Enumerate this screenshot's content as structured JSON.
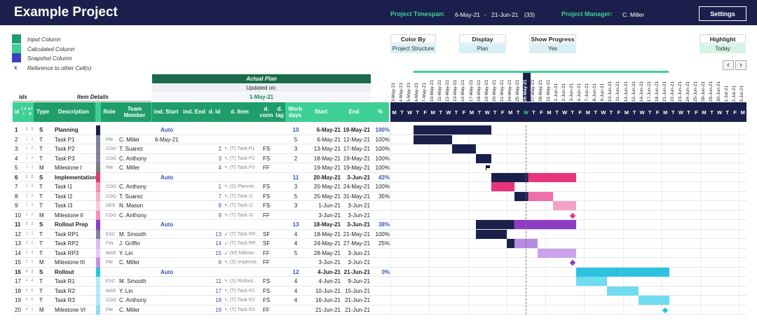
{
  "header": {
    "title": "Example Project",
    "timespan_label": "Project Timespan:",
    "start": "6-May-21",
    "dash": "-",
    "end": "21-Jun-21",
    "days": "(33)",
    "manager_label": "Project Manager:",
    "manager": "C. Miller",
    "settings_label": "Settings"
  },
  "legend": [
    {
      "label": "Input Column",
      "color": "#1f9e6b"
    },
    {
      "label": "Calculated Column",
      "color": "#3ecf96"
    },
    {
      "label": "Snapshot Column",
      "color": "#3a3fc4"
    },
    {
      "label": "Reference to other Cell(s)",
      "mark": "x"
    }
  ],
  "controls": [
    {
      "label": "Color By",
      "value": "Project Structure"
    },
    {
      "label": "Display",
      "value": "Plan"
    },
    {
      "label": "Show Progress",
      "value": "Yes"
    },
    {
      "label": "Highlight",
      "value": "Today"
    }
  ],
  "nav": {
    "prev": "‹",
    "next": "›"
  },
  "plan_header": {
    "actual_plan": "Actual Plan",
    "updated_on": "Updated on:",
    "updated_date": "1-May-21",
    "ids": "ids",
    "item_details": "Item Details"
  },
  "columns": {
    "id": "id",
    "lvl": "l v l",
    "sid": "s i d",
    "type": "Type",
    "description": "Description",
    "role": "Role",
    "team_member": "Team Member",
    "ind_start": "ind. Start",
    "ind_end": "ind. End",
    "d_id": "d. id",
    "d_item": "d. Item",
    "d_conn": "d. conn",
    "d_lag": "d. lag",
    "work_days": "Work days",
    "start": "Start",
    "end": "End",
    "pct": "%"
  },
  "gantt_dates": [
    "3-May-21",
    "4-May-21",
    "5-May-21",
    "6-May-21",
    "7-May-21",
    "10-May-21",
    "11-May-21",
    "12-May-21",
    "13-May-21",
    "14-May-21",
    "17-May-21",
    "18-May-21",
    "19-May-21",
    "20-May-21",
    "21-May-21",
    "24-May-21",
    "25-May-21",
    "26-May-21",
    "27-May-21",
    "28-May-21",
    "31-May-21",
    "1-Jun-21",
    "2-Jun-21",
    "3-Jun-21",
    "4-Jun-21",
    "7-Jun-21",
    "8-Jun-21",
    "9-Jun-21",
    "10-Jun-21",
    "11-Jun-21",
    "14-Jun-21",
    "15-Jun-21",
    "16-Jun-21",
    "17-Jun-21",
    "18-Jun-21",
    "21-Jun-21",
    "22-Jun-21",
    "23-Jun-21",
    "24-Jun-21",
    "25-Jun-21",
    "28-Jun-21",
    "29-Jun-21",
    "30-Jun-21",
    "1-Jul-21",
    "2-Jul-21",
    "5-Jul-21"
  ],
  "gantt_days": [
    "M",
    "T",
    "W",
    "T",
    "F",
    "M",
    "T",
    "W",
    "T",
    "F",
    "M",
    "T",
    "W",
    "T",
    "F",
    "M",
    "T",
    "W",
    "T",
    "F",
    "M",
    "T",
    "W",
    "T",
    "F",
    "M",
    "T",
    "W",
    "T",
    "F",
    "M",
    "T",
    "W",
    "T",
    "F",
    "M",
    "T",
    "W",
    "T",
    "F",
    "M",
    "T",
    "W",
    "T",
    "F",
    "M"
  ],
  "today_index": 17,
  "rows": [
    {
      "id": "1",
      "lvl": "1",
      "sid": "1",
      "type": "S",
      "desc": "Planning",
      "role": "",
      "member": "",
      "ind_start": "Auto",
      "ind_end": "",
      "did": "",
      "ditem": "",
      "conn": "",
      "lag": "",
      "days": "10",
      "start": "6-May-21",
      "end": "19-May-21",
      "pct": "100%",
      "summary": true,
      "color": "#1a1f4b",
      "bar": [
        3,
        13
      ],
      "prog": 1.0
    },
    {
      "id": "2",
      "lvl": "1",
      "sid": "1",
      "type": "T",
      "desc": "Task P1",
      "role": "PM",
      "member": "C. Miller",
      "ind_start": "6-May-21",
      "ind_end": "",
      "did": "",
      "ditem": "",
      "conn": "",
      "lag": "",
      "days": "5",
      "start": "6-May-21",
      "end": "12-May-21",
      "pct": "100%",
      "color": "#1a1f4b",
      "bar": [
        3,
        8
      ],
      "prog": 1.0
    },
    {
      "id": "3",
      "lvl": "1",
      "sid": "2",
      "type": "T",
      "desc": "Task P2",
      "role": "COO",
      "member": "T. Suarez",
      "ind_start": "",
      "ind_end": "",
      "did": "2",
      "ditem": "↖ (T) Task P1",
      "conn": "FS",
      "lag": "",
      "days": "3",
      "start": "13-May-21",
      "end": "17-May-21",
      "pct": "100%",
      "color": "#1a1f4b",
      "bar": [
        8,
        11
      ],
      "prog": 1.0
    },
    {
      "id": "4",
      "lvl": "1",
      "sid": "3",
      "type": "T",
      "desc": "Task P3",
      "role": "COO",
      "member": "C. Anthony",
      "ind_start": "",
      "ind_end": "",
      "did": "3",
      "ditem": "↖ (T) Task P2",
      "conn": "FS",
      "lag": "",
      "days": "2",
      "start": "18-May-21",
      "end": "19-May-21",
      "pct": "100%",
      "color": "#1a1f4b",
      "bar": [
        11,
        13
      ],
      "prog": 1.0
    },
    {
      "id": "5",
      "lvl": "1",
      "sid": "1",
      "type": "M",
      "desc": "Milestone I",
      "role": "PM",
      "member": "C. Miller",
      "ind_start": "",
      "ind_end": "",
      "did": "4",
      "ditem": "↖ (T) Task P3",
      "conn": "FF",
      "lag": "",
      "days": "",
      "start": "19-May-21",
      "end": "19-May-21",
      "pct": "100%",
      "milestone": 12,
      "mcolor": "#111",
      "mshape": "flag"
    },
    {
      "id": "6",
      "lvl": "2",
      "sid": "2",
      "type": "S",
      "desc": "Implementation",
      "role": "",
      "member": "",
      "ind_start": "Auto",
      "ind_end": "",
      "did": "",
      "ditem": "",
      "conn": "",
      "lag": "",
      "days": "11",
      "start": "20-May-21",
      "end": "3-Jun-21",
      "pct": "43%",
      "summary": true,
      "color": "#e8347d",
      "bar": [
        13,
        24
      ],
      "prog": 0.43
    },
    {
      "id": "7",
      "lvl": "2",
      "sid": "3",
      "type": "T",
      "desc": "Task I1",
      "role": "COO",
      "member": "C. Anthony",
      "ind_start": "",
      "ind_end": "",
      "did": "1",
      "ditem": "↖ (S) Plannin..",
      "conn": "FS",
      "lag": "",
      "days": "3",
      "start": "20-May-21",
      "end": "24-May-21",
      "pct": "100%",
      "color": "#e8347d",
      "bar": [
        13,
        16
      ],
      "prog": 1.0
    },
    {
      "id": "8",
      "lvl": "2",
      "sid": "3",
      "type": "T",
      "desc": "Task I2",
      "role": "COO",
      "member": "T. Suarez",
      "ind_start": "",
      "ind_end": "",
      "did": "7",
      "ditem": "↖ (T) Task I1",
      "conn": "FS",
      "lag": "",
      "days": "5",
      "start": "25-May-21",
      "end": "31-May-21",
      "pct": "35%",
      "color": "#ef6fa8",
      "bar": [
        16,
        21
      ],
      "prog": 0.35
    },
    {
      "id": "9",
      "lvl": "2",
      "sid": "3",
      "type": "T",
      "desc": "Task I3",
      "role": "DES",
      "member": "N. Mason",
      "ind_start": "",
      "ind_end": "",
      "did": "8",
      "ditem": "↖ (T) Task I2",
      "conn": "FS",
      "lag": "",
      "days": "3",
      "start": "1-Jun-21",
      "end": "3-Jun-21",
      "pct": "",
      "color": "#f4a3c8",
      "bar": [
        21,
        24
      ],
      "prog": 0
    },
    {
      "id": "10",
      "lvl": "2",
      "sid": "2",
      "type": "M",
      "desc": "Milestone II",
      "role": "COO",
      "member": "C. Anthony",
      "ind_start": "",
      "ind_end": "",
      "did": "9",
      "ditem": "↖ (T) Task I3",
      "conn": "FF",
      "lag": "",
      "days": "",
      "start": "3-Jun-21",
      "end": "3-Jun-21",
      "pct": "",
      "milestone": 23,
      "mcolor": "#e8347d",
      "mshape": "diamond"
    },
    {
      "id": "11",
      "lvl": "3",
      "sid": "3",
      "type": "S",
      "desc": "Rollout Prep",
      "role": "",
      "member": "",
      "ind_start": "Auto",
      "ind_end": "",
      "did": "",
      "ditem": "",
      "conn": "",
      "lag": "",
      "days": "13",
      "start": "18-May-21",
      "end": "3-Jun-21",
      "pct": "38%",
      "summary": true,
      "color": "#8e3cc4",
      "bar": [
        11,
        24
      ],
      "prog": 0.38
    },
    {
      "id": "12",
      "lvl": "3",
      "sid": "2",
      "type": "T",
      "desc": "Task RP1",
      "role": "EXC",
      "member": "M. Smooth",
      "ind_start": "",
      "ind_end": "",
      "did": "13",
      "ditem": "↙ (T) Task RP..",
      "conn": "SF",
      "lag": "",
      "days": "4",
      "start": "18-May-21",
      "end": "21-May-21",
      "pct": "100%",
      "color": "#1a1f4b",
      "bar": [
        11,
        15
      ],
      "prog": 1.0
    },
    {
      "id": "13",
      "lvl": "3",
      "sid": "2",
      "type": "T",
      "desc": "Task RP2",
      "role": "FIN",
      "member": "J. Griffin",
      "ind_start": "",
      "ind_end": "",
      "did": "14",
      "ditem": "↙ (T) Task RP..",
      "conn": "SF",
      "lag": "",
      "days": "4",
      "start": "24-May-21",
      "end": "27-May-21",
      "pct": "25%",
      "color": "#b98ae0",
      "bar": [
        15,
        19
      ],
      "prog": 0.25
    },
    {
      "id": "14",
      "lvl": "3",
      "sid": "4",
      "type": "T",
      "desc": "Task RP3",
      "role": "MAR",
      "member": "Y. Lin",
      "ind_start": "",
      "ind_end": "",
      "did": "15",
      "ditem": "↙ (M) Milesto..",
      "conn": "FF",
      "lag": "",
      "days": "5",
      "start": "28-May-21",
      "end": "3-Jun-21",
      "pct": "",
      "color": "#c9a3ea",
      "bar": [
        19,
        24
      ],
      "prog": 0
    },
    {
      "id": "15",
      "lvl": "3",
      "sid": "1",
      "type": "M",
      "desc": "Milestone III",
      "role": "PM",
      "member": "C. Miller",
      "ind_start": "",
      "ind_end": "",
      "did": "6",
      "ditem": "↖ (S) Impleme..",
      "conn": "FF",
      "lag": "",
      "days": "",
      "start": "3-Jun-21",
      "end": "3-Jun-21",
      "pct": "",
      "milestone": 23,
      "mcolor": "#8e3cc4",
      "mshape": "diamond"
    },
    {
      "id": "16",
      "lvl": "4",
      "sid": "2",
      "type": "S",
      "desc": "Rollout",
      "role": "",
      "member": "",
      "ind_start": "Auto",
      "ind_end": "",
      "did": "",
      "ditem": "",
      "conn": "",
      "lag": "",
      "days": "12",
      "start": "4-Jun-21",
      "end": "21-Jun-21",
      "pct": "0%",
      "summary": true,
      "color": "#2dc3e0",
      "bar": [
        24,
        36
      ],
      "prog": 0
    },
    {
      "id": "17",
      "lvl": "4",
      "sid": "4",
      "type": "T",
      "desc": "Task R1",
      "role": "EXC",
      "member": "M. Smooth",
      "ind_start": "",
      "ind_end": "",
      "did": "11",
      "ditem": "↖ (S) Rollout..",
      "conn": "FS",
      "lag": "",
      "days": "4",
      "start": "4-Jun-21",
      "end": "9-Jun-21",
      "pct": "",
      "color": "#6fdcef",
      "bar": [
        24,
        28
      ],
      "prog": 0
    },
    {
      "id": "18",
      "lvl": "4",
      "sid": "6",
      "type": "T",
      "desc": "Task R2",
      "role": "MAR",
      "member": "Y. Lin",
      "ind_start": "",
      "ind_end": "",
      "did": "17",
      "ditem": "↖ (T) Task R1",
      "conn": "FS",
      "lag": "",
      "days": "4",
      "start": "10-Jun-21",
      "end": "15-Jun-21",
      "pct": "",
      "color": "#6fdcef",
      "bar": [
        28,
        32
      ],
      "prog": 0
    },
    {
      "id": "19",
      "lvl": "4",
      "sid": "6",
      "type": "T",
      "desc": "Task R3",
      "role": "COO",
      "member": "C. Anthony",
      "ind_start": "",
      "ind_end": "",
      "did": "18",
      "ditem": "↖ (T) Task R2",
      "conn": "FS",
      "lag": "",
      "days": "4",
      "start": "16-Jun-21",
      "end": "21-Jun-21",
      "pct": "",
      "color": "#6fdcef",
      "bar": [
        32,
        36
      ],
      "prog": 0
    },
    {
      "id": "20",
      "lvl": "4",
      "sid": "1",
      "type": "M",
      "desc": "Milestone VI",
      "role": "PM",
      "member": "C. Miller",
      "ind_start": "",
      "ind_end": "",
      "did": "19",
      "ditem": "↖ (T) Task R3",
      "conn": "FF",
      "lag": "",
      "days": "",
      "start": "21-Jun-21",
      "end": "21-Jun-21",
      "pct": "",
      "milestone": 35,
      "mcolor": "#2dc3e0",
      "mshape": "diamond"
    }
  ],
  "colors": {
    "navy": "#1a1f4b",
    "green": "#3ecf96",
    "dark_green": "#1a6b4a"
  }
}
